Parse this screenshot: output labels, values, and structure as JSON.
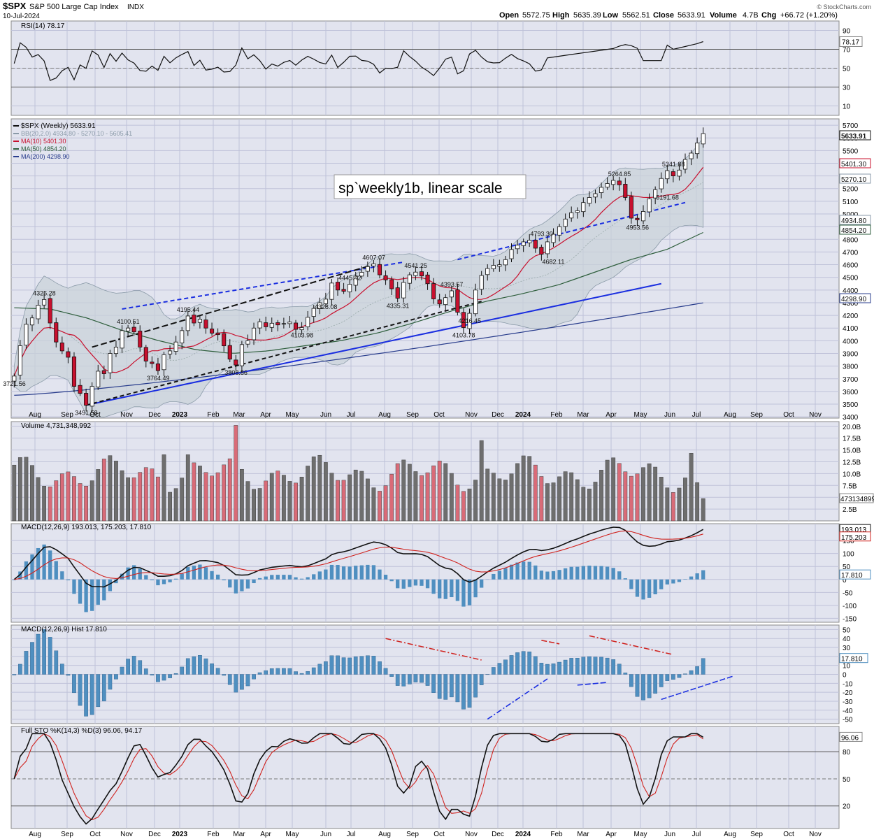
{
  "header": {
    "symbol": "$SPX",
    "name": "S&P 500 Large Cap Index",
    "exchange": "INDX",
    "date": "10-Jul-2024",
    "open_label": "Open",
    "open": "5572.75",
    "high_label": "High",
    "high": "5635.39",
    "low_label": "Low",
    "low": "5562.51",
    "close_label": "Close",
    "close": "5633.91",
    "volume_label": "Volume",
    "volume": "4.7B",
    "chg_label": "Chg",
    "chg": "+66.72 (+1.20%)",
    "watermark": "© StockCharts.com"
  },
  "colors": {
    "up": "#ffffff",
    "down": "#c8102e",
    "grid": "#bfc2d9",
    "panel_bg": "#e2e4ef",
    "ma10": "#c8102e",
    "ma50": "#2e5e3c",
    "ma200": "#283c8c",
    "bb": "#8a9aa8",
    "vol_up": "#6e6e6e",
    "vol_down": "#d96b78",
    "macd": "#111111",
    "signal": "#d0231f",
    "hist": "#4f8fc0",
    "stoK": "#111111",
    "stoD": "#d0231f",
    "trend_blue": "#1a2ee0",
    "trend_black": "#111111",
    "rsi_fill": "#6e8a78"
  },
  "chart_data": {
    "type": "candlestick",
    "title": "sp`weekly1b, linear scale",
    "x_axis_months": [
      "Aug",
      "Sep",
      "Oct",
      "Nov",
      "Dec",
      "2023",
      "Feb",
      "Mar",
      "Apr",
      "May",
      "Jun",
      "Jul",
      "Aug",
      "Sep",
      "Oct",
      "Nov",
      "Dec",
      "2024",
      "Feb",
      "Mar",
      "Apr",
      "May",
      "Jun",
      "Jul",
      "Aug",
      "Sep",
      "Oct",
      "Nov"
    ],
    "price_ticks": [
      3400,
      3500,
      3600,
      3700,
      3800,
      3900,
      4000,
      4100,
      4200,
      4300,
      4400,
      4500,
      4600,
      4700,
      4800,
      4900,
      5000,
      5100,
      5200,
      5300,
      5400,
      5500,
      5600,
      5700
    ],
    "price_range": [
      3390,
      5750
    ],
    "close_series": [
      3721.56,
      3961,
      4130,
      4180,
      4280,
      4325.28,
      4140,
      3990,
      3920,
      3870,
      3640,
      3585,
      3491.58,
      3640,
      3760,
      3740,
      3900,
      3950,
      4080,
      4100.51,
      4070,
      3950,
      3840,
      3820,
      3764.49,
      3890,
      3920,
      3990,
      4080,
      4195.44,
      4140,
      4170,
      4100,
      4060,
      4048,
      3960,
      3855,
      3808.86,
      3970,
      4000,
      4100,
      4150,
      4110,
      4138,
      4125,
      4136,
      4148,
      4090,
      4103.98,
      4185,
      4255,
      4300,
      4328.08,
      4455,
      4400,
      4390,
      4445.42,
      4510,
      4540,
      4585,
      4607.07,
      4520,
      4480,
      4410,
      4335.31,
      4460,
      4520,
      4541.25,
      4511,
      4450,
      4330,
      4290,
      4340,
      4393.57,
      4225,
      4103.78,
      4216.45,
      4400,
      4515,
      4570,
      4595,
      4600,
      4640,
      4720,
      4754,
      4780,
      4793.3,
      4730,
      4682.11,
      4780,
      4840,
      4900,
      4960,
      5010,
      5025,
      5090,
      5130,
      5160,
      5210,
      5240,
      5264.85,
      5230,
      5130,
      4967,
      4953.56,
      5020,
      5120,
      5191.68,
      5280,
      5341.88,
      5300,
      5346,
      5430,
      5480,
      5560,
      5633.91
    ],
    "ohlc_note": "Weekly candles: one open/high/low/close per week; close_series lists closes in order.",
    "annotations": [
      "3721.56",
      "4325.28",
      "3491.58",
      "4100.51",
      "3764.49",
      "4195.44",
      "3808.86",
      "4103.98",
      "4328.08",
      "4445.42",
      "4607.07",
      "4541.25",
      "4335.31",
      "4393.57",
      "4216.45",
      "4103.78",
      "4793.30",
      "4682.11",
      "5264.85",
      "5341.88",
      "5191.68",
      "4953.56"
    ],
    "legend": [
      {
        "name": "$SPX (Weekly) 5633.91",
        "color": "#111111"
      },
      {
        "name": "BB(20,2.0) 4934.80 - 5270.10 - 5605.41",
        "color": "#8a9aa8"
      },
      {
        "name": "MA(10) 5401.30",
        "color": "#c8102e"
      },
      {
        "name": "MA(50) 4854.20",
        "color": "#2e5e3c"
      },
      {
        "name": "MA(200) 4298.90",
        "color": "#283c8c"
      }
    ],
    "right_value_tags": [
      "5633.91",
      "5401.30",
      "5270.10",
      "4934.80",
      "4854.20",
      "4298.90"
    ],
    "rsi": {
      "label": "RSI(14) 78.17",
      "ticks": [
        10,
        30,
        50,
        70,
        90
      ],
      "levels": [
        70,
        30
      ],
      "value_tag": "78.17",
      "tick_label_70": "70"
    },
    "volume": {
      "label": "Volume 4,731,348,992",
      "ticks": [
        "2.5B",
        "5.0B",
        "7.5B",
        "10.0B",
        "12.5B",
        "15.0B",
        "17.5B",
        "20.0B"
      ],
      "tick_values": [
        2.5,
        5,
        7.5,
        10,
        12.5,
        15,
        17.5,
        20
      ],
      "value_tag": "4731348992",
      "range": [
        0,
        21
      ]
    },
    "macd": {
      "label": "MACD(12,26,9) 193.013, 175.203, 17.810",
      "ticks": [
        -150,
        -100,
        -50,
        0,
        50,
        100,
        150
      ],
      "value_tags": [
        "193.013",
        "175.203",
        "17.810"
      ],
      "range": [
        -165,
        215
      ],
      "final_values": {
        "macd": 193.013,
        "signal": 175.203,
        "hist": 17.81
      }
    },
    "macd_hist": {
      "label": "MACD(12,26,9) Hist 17.810",
      "ticks": [
        -50,
        -40,
        -30,
        -20,
        -10,
        0,
        10,
        20,
        30,
        40,
        50
      ],
      "value_tag": "17.810",
      "range": [
        -55,
        55
      ]
    },
    "stochastic": {
      "label": "Full STO %K(14,3) %D(3) 96.06, 94.17",
      "ticks": [
        20,
        50,
        80
      ],
      "levels": [
        80,
        50,
        20
      ],
      "value_tag": "96.06",
      "range": [
        0,
        100
      ]
    }
  }
}
